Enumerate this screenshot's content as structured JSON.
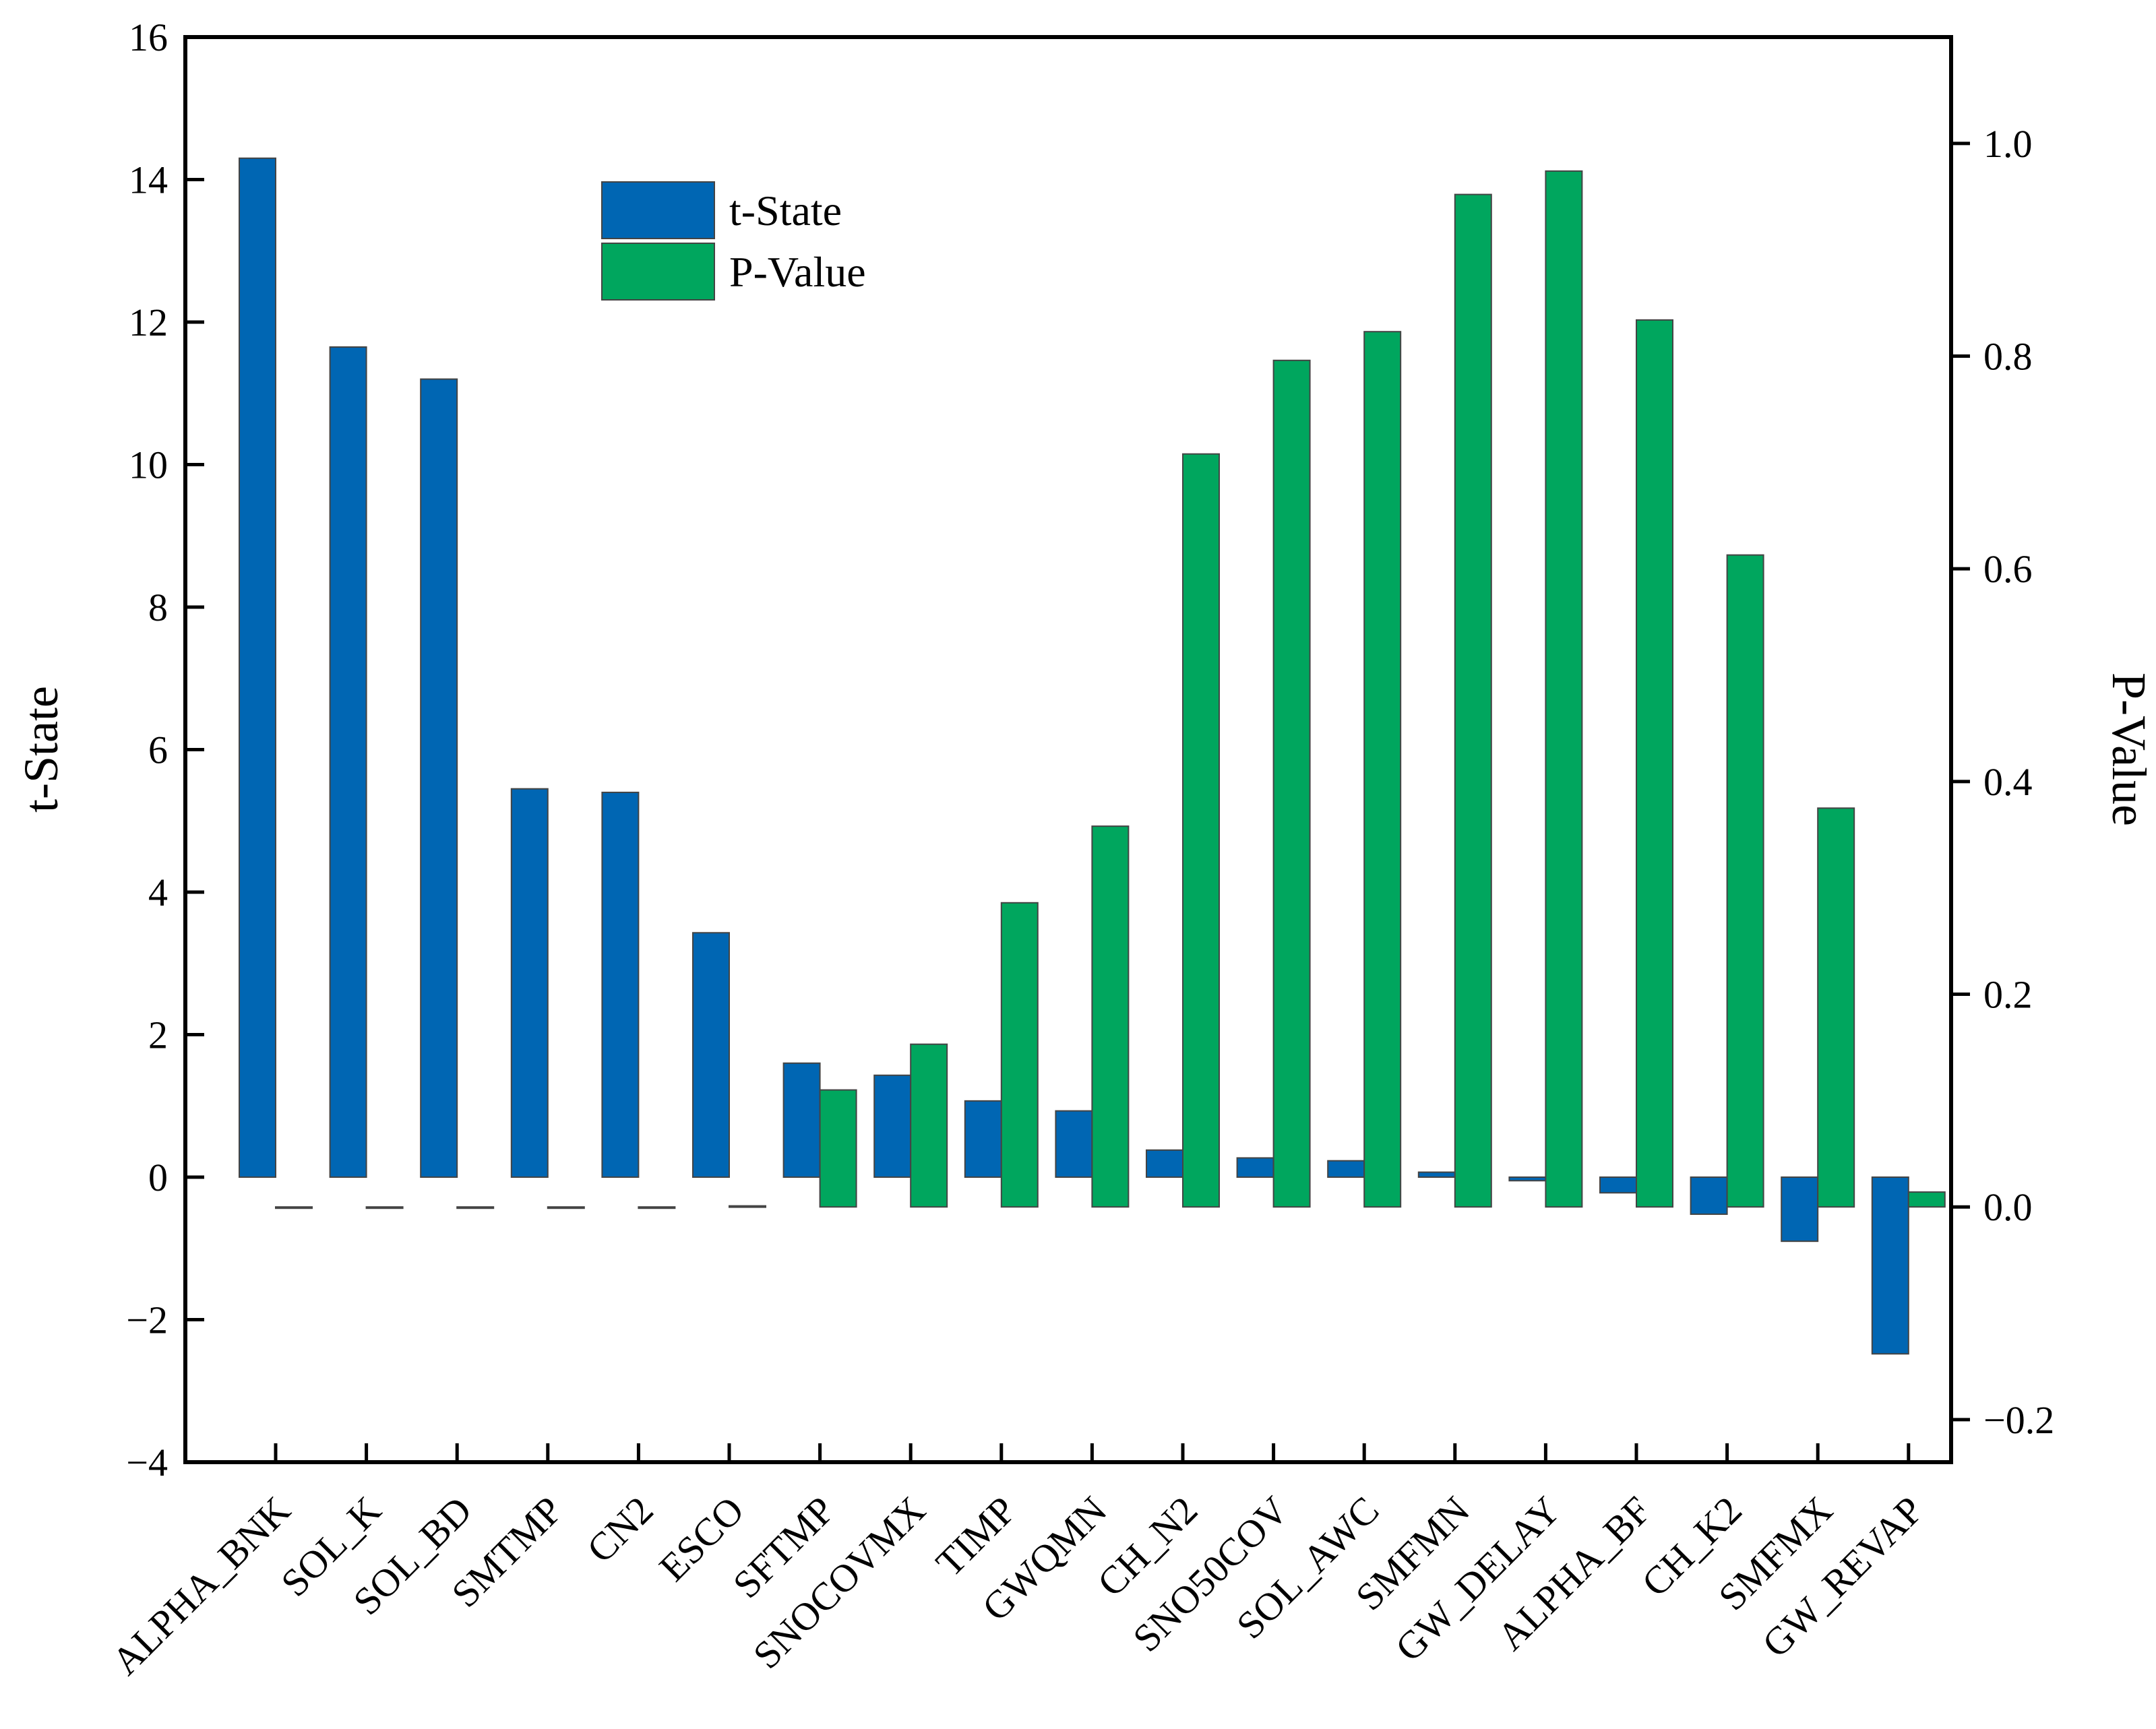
{
  "chart_data": {
    "type": "bar",
    "categories": [
      "ALPHA_BNK",
      "SOL_K",
      "SOL_BD",
      "SMTMP",
      "CN2",
      "ESCO",
      "SFTMP",
      "SNOCOVMX",
      "TIMP",
      "GWQMN",
      "CH_N2",
      "SNO50COV",
      "SOL_AWC",
      "SMFMN",
      "GW_DELAY",
      "ALPHA_BF",
      "CH_K2",
      "SMFMX",
      "GW_REVAP"
    ],
    "series": [
      {
        "name": "t-State",
        "axis": "left",
        "color": "#0066B3",
        "values": [
          14.3,
          11.65,
          11.2,
          5.45,
          5.4,
          3.43,
          1.6,
          1.43,
          1.07,
          0.93,
          0.38,
          0.27,
          0.23,
          0.07,
          -0.05,
          -0.22,
          -0.52,
          -0.9,
          -2.48
        ]
      },
      {
        "name": "P-Value",
        "axis": "right",
        "color": "#00A65E",
        "values": [
          0.0,
          0.0,
          0.0,
          0.0,
          0.0,
          0.001,
          0.11,
          0.153,
          0.286,
          0.358,
          0.708,
          0.796,
          0.823,
          0.952,
          0.974,
          0.834,
          0.613,
          0.375,
          0.014
        ]
      }
    ],
    "ylabel": "t-State",
    "y2label": "P-Value",
    "ylim": [
      -4,
      16
    ],
    "y2lim": [
      -0.24,
      1.1
    ],
    "yticks": [
      16,
      14,
      12,
      10,
      8,
      6,
      4,
      2,
      0,
      -2,
      -4
    ],
    "ytick_labels": [
      "16",
      "14",
      "12",
      "10",
      "8",
      "6",
      "4",
      "2",
      "0",
      "−2",
      "−4"
    ],
    "y2ticks": [
      1.0,
      0.8,
      0.6,
      0.4,
      0.2,
      0.0,
      -0.2
    ],
    "y2tick_labels": [
      "1.0",
      "0.8",
      "0.6",
      "0.4",
      "0.2",
      "0.0",
      "−0.2"
    ],
    "legend": {
      "position": "top-left-center",
      "entries": [
        "t-State",
        "P-Value"
      ]
    }
  }
}
